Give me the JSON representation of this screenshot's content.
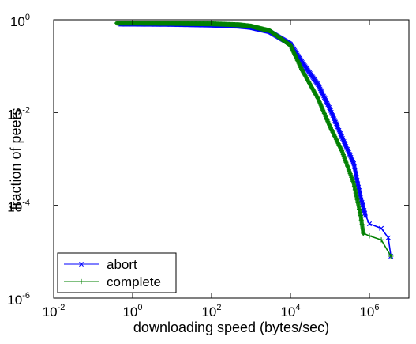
{
  "chart_data": {
    "type": "line",
    "title": "",
    "xlabel": "downloading speed (bytes/sec)",
    "ylabel": "fraction of peers",
    "xscale": "log",
    "yscale": "log",
    "xlim": [
      0.01,
      10000000
    ],
    "ylim": [
      1e-06,
      1
    ],
    "x_ticks": [
      {
        "base": "10",
        "exp": "-2",
        "value": 0.01
      },
      {
        "base": "10",
        "exp": "0",
        "value": 1
      },
      {
        "base": "10",
        "exp": "2",
        "value": 100
      },
      {
        "base": "10",
        "exp": "4",
        "value": 10000
      },
      {
        "base": "10",
        "exp": "6",
        "value": 1000000
      }
    ],
    "y_ticks": [
      {
        "base": "10",
        "exp": "0",
        "value": 1
      },
      {
        "base": "10",
        "exp": "-2",
        "value": 0.01
      },
      {
        "base": "10",
        "exp": "-4",
        "value": 0.0001
      },
      {
        "base": "10",
        "exp": "-6",
        "value": 1e-06
      }
    ],
    "legend_position": "bottom-left",
    "grid": false,
    "series": [
      {
        "name": "abort",
        "color": "#0000ff",
        "marker": "x",
        "points": [
          [
            0.5,
            0.8
          ],
          [
            1,
            0.8
          ],
          [
            10,
            0.79
          ],
          [
            100,
            0.76
          ],
          [
            500,
            0.72
          ],
          [
            1000,
            0.68
          ],
          [
            3000,
            0.55
          ],
          [
            10000,
            0.3
          ],
          [
            20000,
            0.12
          ],
          [
            50000,
            0.04
          ],
          [
            100000,
            0.012
          ],
          [
            200000,
            0.003
          ],
          [
            400000,
            0.0008
          ],
          [
            600000,
            0.00015
          ],
          [
            800000,
            6e-05
          ],
          [
            1000000,
            4e-05
          ],
          [
            2000000,
            3.2e-05
          ],
          [
            3000000,
            2e-05
          ],
          [
            3500000,
            8e-06
          ]
        ]
      },
      {
        "name": "complete",
        "color": "#008000",
        "marker": "+",
        "points": [
          [
            0.4,
            0.85
          ],
          [
            1,
            0.85
          ],
          [
            10,
            0.84
          ],
          [
            100,
            0.82
          ],
          [
            500,
            0.78
          ],
          [
            1000,
            0.73
          ],
          [
            3000,
            0.58
          ],
          [
            10000,
            0.28
          ],
          [
            20000,
            0.08
          ],
          [
            50000,
            0.02
          ],
          [
            100000,
            0.005
          ],
          [
            200000,
            0.0015
          ],
          [
            400000,
            0.0003
          ],
          [
            600000,
            6e-05
          ],
          [
            700000,
            2.5e-05
          ],
          [
            1000000,
            2.2e-05
          ],
          [
            2000000,
            1.8e-05
          ],
          [
            3500000,
            8e-06
          ]
        ]
      }
    ]
  }
}
